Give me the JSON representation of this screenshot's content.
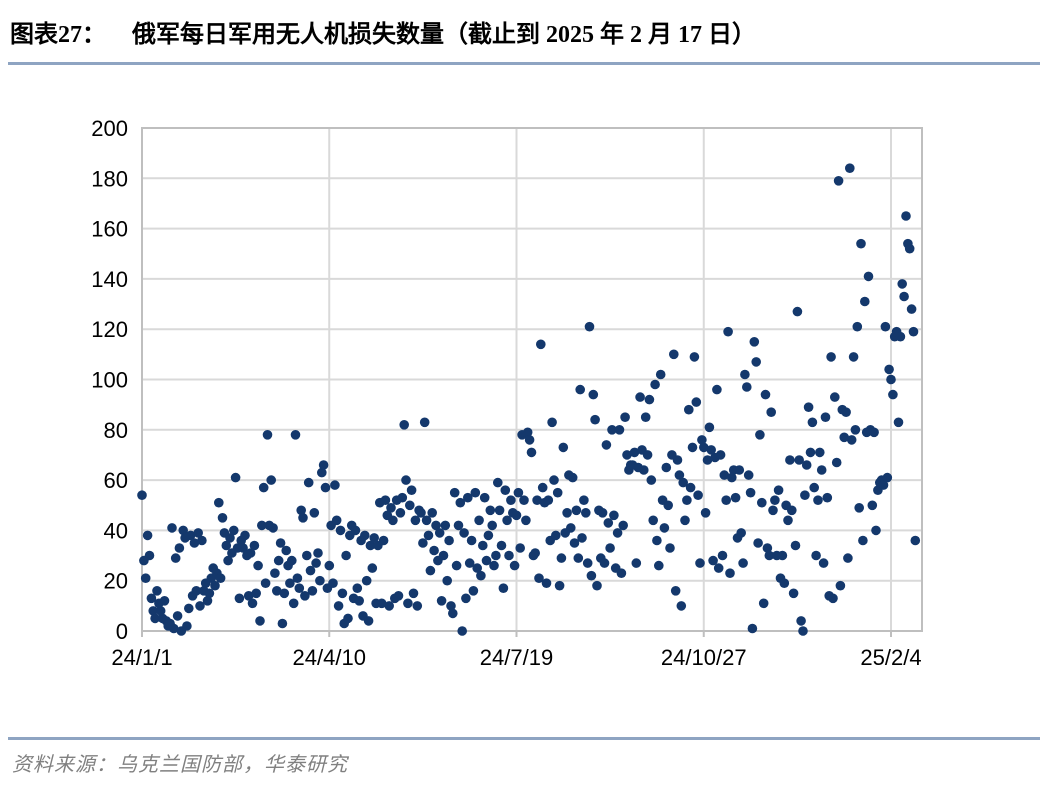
{
  "header": {
    "figure_label": "图表27：",
    "title": "俄军每日军用无人机损失数量（截止到 2025 年 2 月 17 日）"
  },
  "footer": {
    "source": "资料来源：乌克兰国防部，华泰研究"
  },
  "colors": {
    "dot": "#14386C",
    "gridline": "#D9D9D9",
    "axis_border": "#BFBFBF",
    "accent_rule": "#8EA4C2",
    "source_text": "#808080",
    "tick_label": "#000000",
    "title_text": "#000000"
  },
  "chart_data": {
    "type": "scatter",
    "title": "俄军每日军用无人机损失数量（截止到 2025 年 2 月 17 日）",
    "legend_position": "none",
    "grid": true,
    "x_axis": {
      "tick_labels": [
        "24/1/1",
        "24/4/10",
        "24/7/19",
        "24/10/27",
        "25/2/4"
      ],
      "tick_days": [
        0,
        100,
        200,
        300,
        400
      ],
      "range_days": [
        0,
        416
      ]
    },
    "y_axis": {
      "tick_labels": [
        "0",
        "20",
        "40",
        "60",
        "80",
        "100",
        "120",
        "140",
        "160",
        "180",
        "200"
      ],
      "min": 0,
      "max": 200,
      "step": 20
    },
    "series": [
      {
        "name": "每日军用无人机损失数量",
        "start_day_index": 0,
        "daily_values": [
          54,
          28,
          21,
          38,
          30,
          13,
          8,
          5,
          16,
          11,
          8,
          5,
          12,
          4,
          2,
          3,
          41,
          1,
          29,
          6,
          33,
          0,
          40,
          37,
          2,
          9,
          38,
          14,
          35,
          16,
          39,
          10,
          36,
          16,
          19,
          12,
          15,
          21,
          25,
          18,
          23,
          51,
          21,
          45,
          39,
          34,
          28,
          37,
          31,
          40,
          61,
          33,
          13,
          36,
          33,
          38,
          30,
          14,
          31,
          11,
          34,
          15,
          26,
          4,
          42,
          57,
          19,
          78,
          42,
          60,
          41,
          23,
          16,
          28,
          35,
          3,
          15,
          32,
          26,
          19,
          28,
          11,
          78,
          21,
          17,
          48,
          45,
          14,
          30,
          59,
          24,
          16,
          47,
          27,
          31,
          20,
          63,
          66,
          57,
          17,
          26,
          42,
          19,
          58,
          44,
          10,
          40,
          15,
          3,
          30,
          5,
          38,
          42,
          13,
          40,
          17,
          12,
          36,
          6,
          38,
          20,
          4,
          34,
          25,
          37,
          11,
          34,
          51,
          11,
          36,
          52,
          46,
          10,
          49,
          44,
          13,
          52,
          14,
          47,
          53,
          82,
          60,
          11,
          50,
          56,
          15,
          44,
          10,
          48,
          47,
          35,
          83,
          44,
          38,
          24,
          47,
          32,
          42,
          28,
          39,
          12,
          30,
          42,
          20,
          36,
          10,
          7,
          55,
          26,
          42,
          51,
          0,
          39,
          13,
          53,
          27,
          36,
          16,
          55,
          25,
          44,
          22,
          34,
          53,
          28,
          38,
          48,
          42,
          26,
          30,
          59,
          48,
          34,
          17,
          56,
          44,
          30,
          52,
          47,
          26,
          46,
          55,
          33,
          78,
          52,
          44,
          79,
          76,
          71,
          30,
          31,
          52,
          21,
          114,
          57,
          51,
          19,
          52,
          36,
          83,
          60,
          38,
          55,
          18,
          29,
          73,
          39,
          47,
          62,
          41,
          61,
          35,
          48,
          29,
          96,
          37,
          52,
          47,
          27,
          121,
          22,
          94,
          84,
          18,
          48,
          29,
          47,
          27,
          74,
          43,
          33,
          80,
          46,
          25,
          39,
          80,
          23,
          42,
          85,
          70,
          64,
          66,
          66,
          71,
          27,
          65,
          93,
          72,
          64,
          85,
          70,
          92,
          60,
          44,
          98,
          36,
          26,
          102,
          52,
          41,
          65,
          50,
          33,
          70,
          110,
          16,
          68,
          62,
          10,
          59,
          44,
          52,
          88,
          57,
          73,
          109,
          91,
          54,
          27,
          76,
          73,
          47,
          68,
          81,
          72,
          28,
          69,
          96,
          25,
          70,
          30,
          62,
          52,
          119,
          23,
          61,
          64,
          53,
          37,
          64,
          39,
          27,
          102,
          97,
          62,
          55,
          1,
          115,
          107,
          35,
          78,
          51,
          11,
          94,
          33,
          30,
          87,
          48,
          52,
          30,
          56,
          21,
          30,
          19,
          50,
          44,
          68,
          48,
          15,
          34,
          127,
          68,
          4,
          0,
          54,
          66,
          89,
          71,
          83,
          57,
          30,
          52,
          71,
          64,
          27,
          85,
          53,
          14,
          109,
          13,
          93,
          67,
          179,
          18,
          88,
          77,
          87,
          29,
          184,
          76,
          109,
          80,
          121,
          49,
          154,
          36,
          131,
          79,
          141,
          80,
          50,
          79,
          40,
          56,
          59,
          60,
          58,
          121,
          61,
          104,
          100,
          94,
          117,
          119,
          83,
          117,
          138,
          133,
          165,
          154,
          152,
          128,
          119,
          36
        ]
      }
    ]
  }
}
